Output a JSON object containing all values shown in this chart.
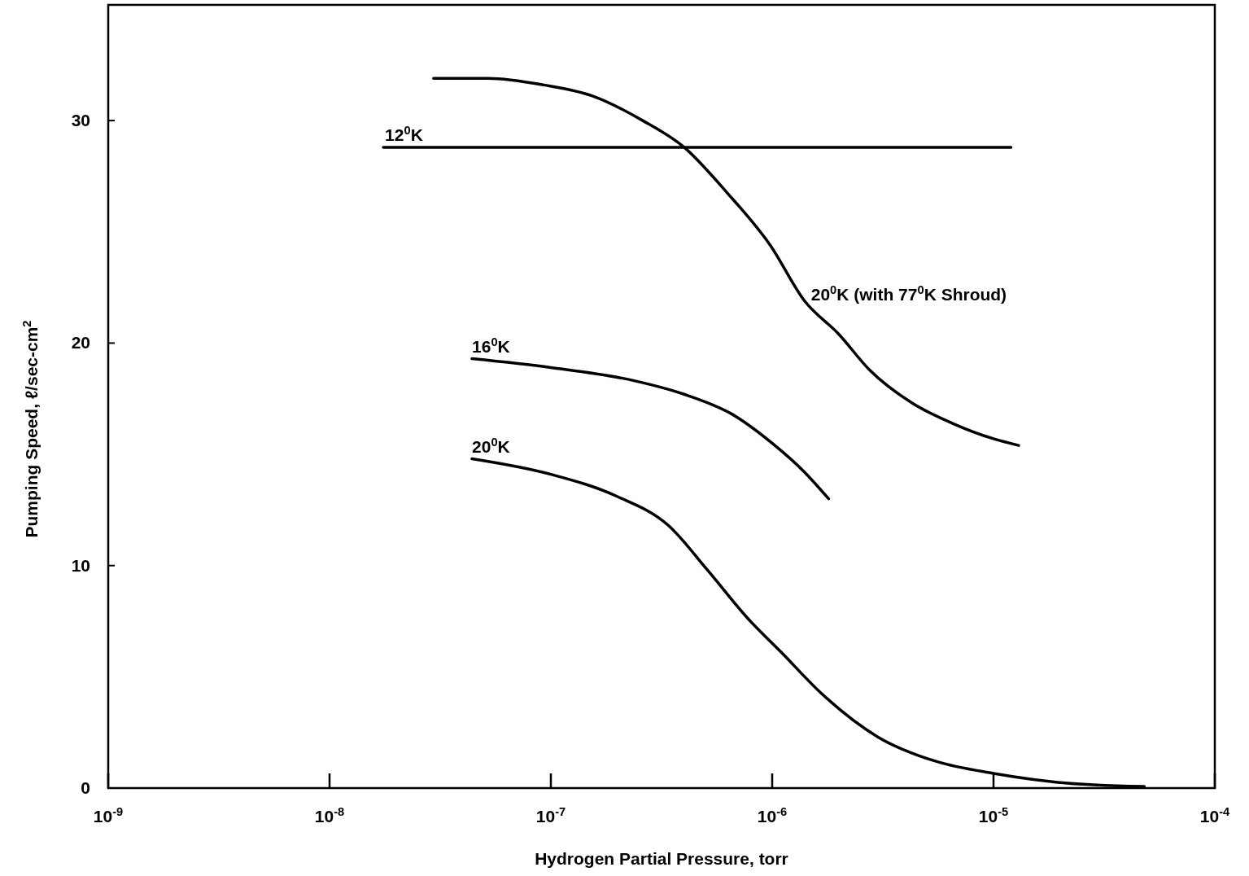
{
  "chart_data": {
    "type": "line",
    "xlabel": "Hydrogen Partial Pressure, torr",
    "ylabel": "Pumping Speed, ℓ/sec-cm$^{2}$",
    "log": "x",
    "xlim": [
      1e-09,
      0.0001
    ],
    "ylim": [
      0,
      35.2
    ],
    "xticks": [
      {
        "value": 1e-09,
        "label": "10$^{-9}$"
      },
      {
        "value": 1e-08,
        "label": "10$^{-8}$"
      },
      {
        "value": 1e-07,
        "label": "10$^{-7}$"
      },
      {
        "value": 1e-06,
        "label": "10$^{-6}$"
      },
      {
        "value": 1e-05,
        "label": "10$^{-5}$"
      },
      {
        "value": 0.0001,
        "label": "10$^{-4}$"
      }
    ],
    "yticks": [
      0,
      10,
      20,
      30
    ],
    "grid": false,
    "series": [
      {
        "name": "12$^{0}$K",
        "color": "#000000",
        "x": [
          1.75e-08,
          1.2e-05
        ],
        "values": [
          28.8,
          28.8
        ]
      },
      {
        "name": "20$^{0}$K (with 77$^{0}$K Shroud)",
        "color": "#000000",
        "x": [
          2.95e-08,
          5.2e-08,
          9.3e-08,
          1.55e-07,
          2.6e-07,
          4e-07,
          6.2e-07,
          9.8e-07,
          1.4e-06,
          2e-06,
          2.75e-06,
          4.3e-06,
          6.5e-06,
          1e-05,
          1.3e-05
        ],
        "values": [
          31.9,
          31.9,
          31.6,
          31.1,
          30.0,
          28.8,
          26.8,
          24.4,
          21.9,
          20.4,
          18.8,
          17.3,
          16.4,
          15.7,
          15.4
        ]
      },
      {
        "name": "16$^{0}$K",
        "color": "#000000",
        "x": [
          4.4e-08,
          1e-07,
          2.4e-07,
          4e-07,
          6.6e-07,
          1e-06,
          1.4e-06,
          1.8e-06
        ],
        "values": [
          19.3,
          18.9,
          18.3,
          17.7,
          16.8,
          15.5,
          14.2,
          13.0
        ]
      },
      {
        "name": "20$^{0}$K",
        "color": "#000000",
        "x": [
          4.4e-08,
          1e-07,
          2e-07,
          3.4e-07,
          5.1e-07,
          7.8e-07,
          1.1e-06,
          1.65e-06,
          3e-06,
          5.5e-06,
          1e-05,
          1.95e-05,
          4.8e-05
        ],
        "values": [
          14.8,
          14.1,
          13.1,
          11.8,
          9.8,
          7.6,
          6.1,
          4.3,
          2.3,
          1.2,
          0.66,
          0.26,
          0.07
        ]
      }
    ]
  }
}
